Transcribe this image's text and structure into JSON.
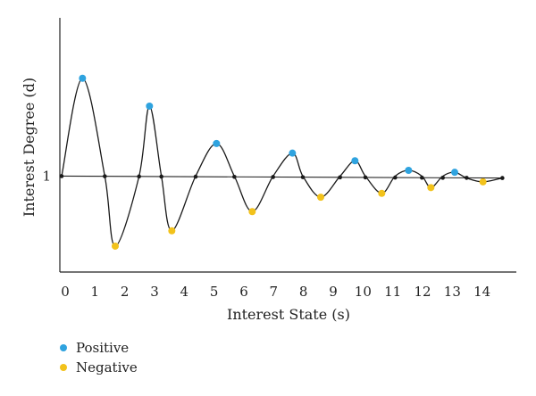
{
  "chart_data": {
    "type": "line",
    "title": "",
    "xlabel": "Interest State (s)",
    "ylabel": "Interest Degree (d)",
    "xlim": [
      0,
      15
    ],
    "ylim": [
      0,
      2.65
    ],
    "x_ticks": [
      "0",
      "1",
      "2",
      "3",
      "4",
      "5",
      "6",
      "7",
      "8",
      "9",
      "10",
      "11",
      "12",
      "13",
      "14"
    ],
    "y_ticks": [
      {
        "value": 1,
        "label": "1"
      }
    ],
    "grid": false,
    "legend_position": "bottom-left",
    "legend": [
      {
        "label": "Positive",
        "color": "#2fa3df"
      },
      {
        "label": "Negative",
        "color": "#f2c21b"
      }
    ],
    "colors": {
      "positive": "#2fa3df",
      "negative": "#f2c21b",
      "line": "#1a1a1a"
    },
    "curve": [
      [
        0.0,
        1.0
      ],
      [
        0.7,
        2.02
      ],
      [
        1.45,
        1.0
      ],
      [
        1.8,
        0.27
      ],
      [
        2.6,
        1.0
      ],
      [
        2.95,
        1.73
      ],
      [
        3.35,
        1.0
      ],
      [
        3.7,
        0.43
      ],
      [
        4.5,
        1.0
      ],
      [
        5.2,
        1.34
      ],
      [
        5.8,
        1.0
      ],
      [
        6.4,
        0.63
      ],
      [
        7.1,
        1.0
      ],
      [
        7.75,
        1.24
      ],
      [
        8.1,
        1.0
      ],
      [
        8.7,
        0.78
      ],
      [
        9.35,
        1.0
      ],
      [
        9.85,
        1.16
      ],
      [
        10.2,
        1.0
      ],
      [
        10.75,
        0.82
      ],
      [
        11.2,
        1.0
      ],
      [
        11.65,
        1.06
      ],
      [
        12.1,
        1.0
      ],
      [
        12.4,
        0.88
      ],
      [
        12.8,
        1.0
      ],
      [
        13.2,
        1.04
      ],
      [
        13.6,
        0.98
      ],
      [
        14.15,
        0.94
      ],
      [
        14.8,
        0.98
      ]
    ],
    "baseline": [
      [
        0.0,
        1.0
      ],
      [
        14.8,
        0.98
      ]
    ],
    "baseline_markers": [
      0.0,
      1.45,
      2.6,
      3.35,
      4.5,
      5.8,
      7.1,
      8.1,
      9.35,
      10.2,
      11.2,
      12.1,
      12.8,
      13.6,
      14.8
    ],
    "series": [
      {
        "name": "Positive",
        "x": [
          0.7,
          2.95,
          5.2,
          7.75,
          9.85,
          11.65,
          13.2
        ],
        "y": [
          2.02,
          1.73,
          1.34,
          1.24,
          1.16,
          1.06,
          1.04
        ]
      },
      {
        "name": "Negative",
        "x": [
          1.8,
          3.7,
          6.4,
          8.7,
          10.75,
          12.4,
          14.15
        ],
        "y": [
          0.27,
          0.43,
          0.63,
          0.78,
          0.82,
          0.88,
          0.94
        ]
      }
    ]
  }
}
